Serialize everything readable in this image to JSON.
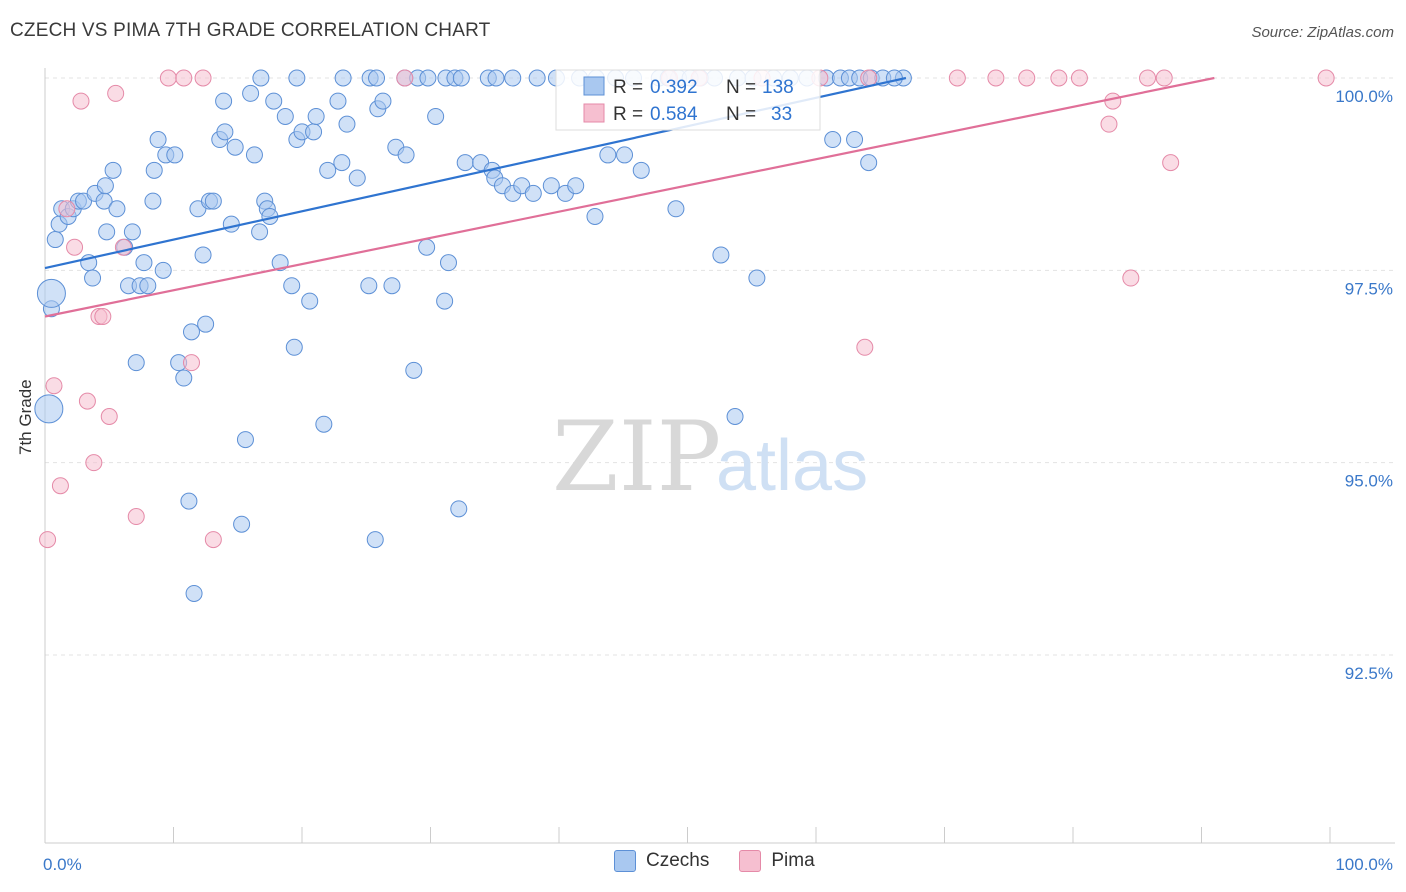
{
  "title": "CZECH VS PIMA 7TH GRADE CORRELATION CHART",
  "source": "Source: ZipAtlas.com",
  "watermark": {
    "zip": "ZIP",
    "atlas": "atlas"
  },
  "legend_top": {
    "rows": [
      {
        "r_label": "R = ",
        "r_value": "0.392",
        "n_label": "N = ",
        "n_value": "138"
      },
      {
        "r_label": "R = ",
        "r_value": "0.584",
        "n_label": "N = ",
        "n_value": "33"
      }
    ]
  },
  "legend_bottom": [
    {
      "label": "Czechs"
    },
    {
      "label": "Pima"
    }
  ],
  "colors": {
    "czechs_fill": "#a9c8f0",
    "czechs_stroke": "#5d90d6",
    "czechs_line": "#2f74d0",
    "pima_fill": "#f6bfd0",
    "pima_stroke": "#e58aa8",
    "pima_line": "#e06f98",
    "tick_label": "#3a78c9",
    "grid": "#e3e3e3"
  },
  "chart_data": {
    "type": "scatter",
    "title": "CZECH VS PIMA 7TH GRADE CORRELATION CHART",
    "xlabel": "",
    "ylabel": "7th Grade",
    "xlim": [
      0,
      100
    ],
    "ylim": [
      90.0,
      100.3
    ],
    "x_tick_labels": [
      "0.0%",
      "100.0%"
    ],
    "y_ticks": [
      92.5,
      95.0,
      97.5,
      100.0
    ],
    "y_tick_labels": [
      "92.5%",
      "95.0%",
      "97.5%",
      "100.0%"
    ],
    "grid": true,
    "series": [
      {
        "name": "Czechs",
        "r": 0.392,
        "n": 138,
        "trend": {
          "x": [
            0,
            67
          ],
          "y": [
            97.53,
            100.0
          ]
        },
        "points": [
          [
            0.5,
            97.0
          ],
          [
            0.8,
            97.9
          ],
          [
            1.1,
            98.1
          ],
          [
            1.3,
            98.3
          ],
          [
            1.8,
            98.2
          ],
          [
            2.2,
            98.3
          ],
          [
            2.6,
            98.4
          ],
          [
            3.0,
            98.4
          ],
          [
            3.4,
            97.6
          ],
          [
            3.7,
            97.4
          ],
          [
            3.9,
            98.5
          ],
          [
            4.6,
            98.4
          ],
          [
            4.7,
            98.6
          ],
          [
            4.8,
            98.0
          ],
          [
            5.3,
            98.8
          ],
          [
            5.6,
            98.3
          ],
          [
            6.2,
            97.8
          ],
          [
            6.5,
            97.3
          ],
          [
            6.8,
            98.0
          ],
          [
            7.1,
            96.3
          ],
          [
            7.4,
            97.3
          ],
          [
            7.7,
            97.6
          ],
          [
            8.0,
            97.3
          ],
          [
            8.4,
            98.4
          ],
          [
            8.5,
            98.8
          ],
          [
            8.8,
            99.2
          ],
          [
            9.2,
            97.5
          ],
          [
            9.4,
            99.0
          ],
          [
            10.1,
            99.0
          ],
          [
            10.4,
            96.3
          ],
          [
            10.8,
            96.1
          ],
          [
            11.2,
            94.5
          ],
          [
            11.4,
            96.7
          ],
          [
            11.6,
            93.3
          ],
          [
            11.9,
            98.3
          ],
          [
            12.3,
            97.7
          ],
          [
            12.5,
            96.8
          ],
          [
            12.8,
            98.4
          ],
          [
            13.1,
            98.4
          ],
          [
            13.6,
            99.2
          ],
          [
            13.9,
            99.7
          ],
          [
            14.0,
            99.3
          ],
          [
            14.5,
            98.1
          ],
          [
            14.8,
            99.1
          ],
          [
            15.3,
            94.2
          ],
          [
            15.6,
            95.3
          ],
          [
            16.0,
            99.8
          ],
          [
            16.3,
            99.0
          ],
          [
            16.7,
            98.0
          ],
          [
            17.1,
            98.4
          ],
          [
            17.3,
            98.3
          ],
          [
            17.5,
            98.2
          ],
          [
            17.8,
            99.7
          ],
          [
            18.3,
            97.6
          ],
          [
            18.7,
            99.5
          ],
          [
            19.2,
            97.3
          ],
          [
            19.4,
            96.5
          ],
          [
            19.6,
            99.2
          ],
          [
            20.0,
            99.3
          ],
          [
            20.6,
            97.1
          ],
          [
            20.9,
            99.3
          ],
          [
            21.1,
            99.5
          ],
          [
            21.7,
            95.5
          ],
          [
            22.0,
            98.8
          ],
          [
            22.8,
            99.7
          ],
          [
            23.1,
            98.9
          ],
          [
            23.5,
            99.4
          ],
          [
            24.3,
            98.7
          ],
          [
            25.2,
            97.3
          ],
          [
            25.7,
            94.0
          ],
          [
            25.9,
            99.6
          ],
          [
            26.3,
            99.7
          ],
          [
            27.0,
            97.3
          ],
          [
            27.3,
            99.1
          ],
          [
            28.1,
            99.0
          ],
          [
            28.7,
            96.2
          ],
          [
            29.7,
            97.8
          ],
          [
            30.4,
            99.5
          ],
          [
            31.1,
            97.1
          ],
          [
            31.4,
            97.6
          ],
          [
            32.2,
            94.4
          ],
          [
            32.7,
            98.9
          ],
          [
            33.9,
            98.9
          ],
          [
            34.8,
            98.8
          ],
          [
            35.0,
            98.7
          ],
          [
            35.6,
            98.6
          ],
          [
            36.4,
            98.5
          ],
          [
            37.1,
            98.6
          ],
          [
            38.0,
            98.5
          ],
          [
            39.4,
            98.6
          ],
          [
            40.5,
            98.5
          ],
          [
            41.3,
            98.6
          ],
          [
            42.8,
            98.2
          ],
          [
            43.8,
            99.0
          ],
          [
            45.1,
            99.0
          ],
          [
            46.4,
            98.8
          ],
          [
            49.1,
            98.3
          ],
          [
            52.6,
            97.7
          ],
          [
            53.7,
            95.6
          ],
          [
            55.4,
            97.4
          ],
          [
            61.3,
            99.2
          ],
          [
            63.0,
            99.2
          ],
          [
            64.1,
            98.9
          ],
          [
            66.8,
            100.0
          ],
          [
            16.8,
            100.0
          ],
          [
            19.6,
            100.0
          ],
          [
            23.2,
            100.0
          ],
          [
            25.3,
            100.0
          ],
          [
            25.8,
            100.0
          ],
          [
            28.0,
            100.0
          ],
          [
            29.0,
            100.0
          ],
          [
            29.8,
            100.0
          ],
          [
            31.2,
            100.0
          ],
          [
            31.9,
            100.0
          ],
          [
            32.4,
            100.0
          ],
          [
            34.5,
            100.0
          ],
          [
            35.1,
            100.0
          ],
          [
            36.4,
            100.0
          ],
          [
            38.3,
            100.0
          ],
          [
            39.8,
            100.0
          ],
          [
            41.6,
            100.0
          ],
          [
            42.9,
            100.0
          ],
          [
            44.4,
            100.0
          ],
          [
            45.8,
            100.0
          ],
          [
            47.8,
            100.0
          ],
          [
            49.3,
            100.0
          ],
          [
            51.0,
            100.0
          ],
          [
            52.1,
            100.0
          ],
          [
            53.9,
            100.0
          ],
          [
            55.1,
            100.0
          ],
          [
            56.7,
            100.0
          ],
          [
            58.0,
            100.0
          ],
          [
            59.3,
            100.0
          ],
          [
            60.8,
            100.0
          ],
          [
            61.9,
            100.0
          ],
          [
            62.6,
            100.0
          ],
          [
            63.4,
            100.0
          ],
          [
            64.3,
            100.0
          ],
          [
            65.2,
            100.0
          ],
          [
            66.1,
            100.0
          ],
          [
            48.5,
            100.0
          ],
          [
            50.2,
            100.0
          ]
        ],
        "large_points": [
          [
            0.5,
            97.2
          ],
          [
            0.3,
            95.7
          ]
        ]
      },
      {
        "name": "Pima",
        "r": 0.584,
        "n": 33,
        "trend": {
          "x": [
            0,
            91
          ],
          "y": [
            96.9,
            100.0
          ]
        },
        "points": [
          [
            0.2,
            94.0
          ],
          [
            0.7,
            96.0
          ],
          [
            1.2,
            94.7
          ],
          [
            1.7,
            98.3
          ],
          [
            2.3,
            97.8
          ],
          [
            2.8,
            99.7
          ],
          [
            3.3,
            95.8
          ],
          [
            3.8,
            95.0
          ],
          [
            4.2,
            96.9
          ],
          [
            5.0,
            95.6
          ],
          [
            5.5,
            99.8
          ],
          [
            6.1,
            97.8
          ],
          [
            7.1,
            94.3
          ],
          [
            9.6,
            100.0
          ],
          [
            10.8,
            100.0
          ],
          [
            11.4,
            96.3
          ],
          [
            12.3,
            100.0
          ],
          [
            13.1,
            94.0
          ],
          [
            28.0,
            100.0
          ],
          [
            48.6,
            100.0
          ],
          [
            50.9,
            100.0
          ],
          [
            55.8,
            100.0
          ],
          [
            60.3,
            100.0
          ],
          [
            64.1,
            100.0
          ],
          [
            71.0,
            100.0
          ],
          [
            74.0,
            100.0
          ],
          [
            76.4,
            100.0
          ],
          [
            78.9,
            100.0
          ],
          [
            82.8,
            99.4
          ],
          [
            83.1,
            99.7
          ],
          [
            84.5,
            97.4
          ],
          [
            87.1,
            100.0
          ],
          [
            87.6,
            98.9
          ]
        ],
        "extra_points": [
          [
            63.8,
            96.5
          ],
          [
            80.5,
            100.0
          ],
          [
            85.8,
            100.0
          ],
          [
            99.7,
            100.0
          ],
          [
            4.5,
            96.9
          ]
        ]
      }
    ]
  }
}
